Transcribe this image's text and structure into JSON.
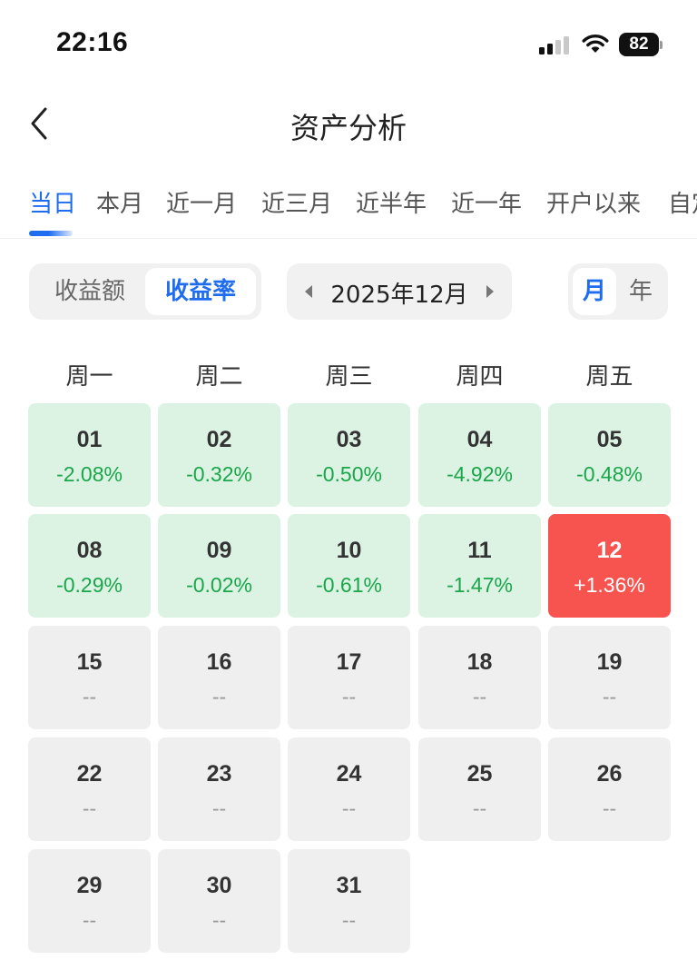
{
  "status": {
    "time": "22:16",
    "battery": "82"
  },
  "nav": {
    "title": "资产分析"
  },
  "tabs": [
    "当日",
    "本月",
    "近一月",
    "近三月",
    "近半年",
    "近一年",
    "开户以来",
    "自定义"
  ],
  "metric_toggle": [
    "收益额",
    "收益率"
  ],
  "month_picker": {
    "label": "2025年12月"
  },
  "period_toggle": [
    "月",
    "年"
  ],
  "weekdays": [
    "周一",
    "周二",
    "周三",
    "周四",
    "周五"
  ],
  "days": [
    {
      "day": "01",
      "value": "-2.08%",
      "state": "loss"
    },
    {
      "day": "02",
      "value": "-0.32%",
      "state": "loss"
    },
    {
      "day": "03",
      "value": "-0.50%",
      "state": "loss"
    },
    {
      "day": "04",
      "value": "-4.92%",
      "state": "loss"
    },
    {
      "day": "05",
      "value": "-0.48%",
      "state": "loss"
    },
    {
      "day": "08",
      "value": "-0.29%",
      "state": "loss"
    },
    {
      "day": "09",
      "value": "-0.02%",
      "state": "loss"
    },
    {
      "day": "10",
      "value": "-0.61%",
      "state": "loss"
    },
    {
      "day": "11",
      "value": "-1.47%",
      "state": "loss"
    },
    {
      "day": "12",
      "value": "+1.36%",
      "state": "gain"
    },
    {
      "day": "15",
      "value": "--",
      "state": "empty"
    },
    {
      "day": "16",
      "value": "--",
      "state": "empty"
    },
    {
      "day": "17",
      "value": "--",
      "state": "empty"
    },
    {
      "day": "18",
      "value": "--",
      "state": "empty"
    },
    {
      "day": "19",
      "value": "--",
      "state": "empty"
    },
    {
      "day": "22",
      "value": "--",
      "state": "empty"
    },
    {
      "day": "23",
      "value": "--",
      "state": "empty"
    },
    {
      "day": "24",
      "value": "--",
      "state": "empty"
    },
    {
      "day": "25",
      "value": "--",
      "state": "empty"
    },
    {
      "day": "26",
      "value": "--",
      "state": "empty"
    },
    {
      "day": "29",
      "value": "--",
      "state": "empty"
    },
    {
      "day": "30",
      "value": "--",
      "state": "empty"
    },
    {
      "day": "31",
      "value": "--",
      "state": "empty"
    }
  ],
  "colors": {
    "accent": "#1e6cf0",
    "loss_bg": "#dcf3e3",
    "loss_text": "#1aa64a",
    "gain_bg": "#f7544f",
    "empty_bg": "#efefef"
  }
}
